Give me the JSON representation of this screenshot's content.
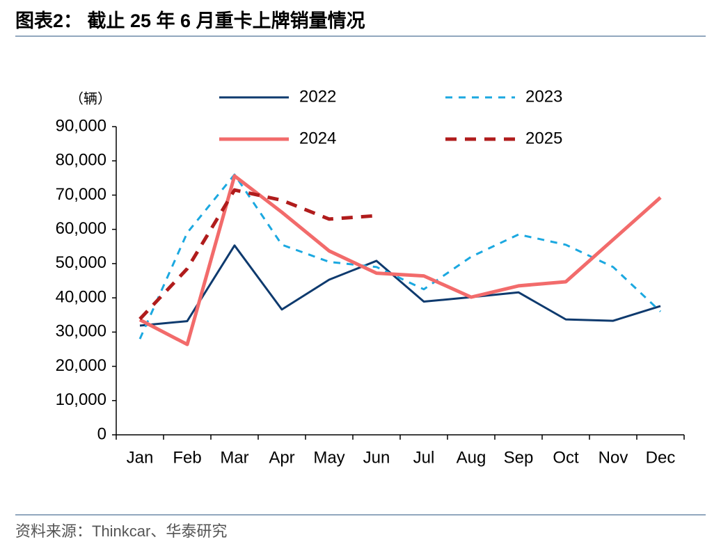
{
  "chart_data": {
    "type": "line",
    "title": "图表2：  截止 25 年 6 月重卡上牌销量情况",
    "y_unit": "（辆）",
    "source": "资料来源：Thinkcar、华泰研究",
    "categories": [
      "Jan",
      "Feb",
      "Mar",
      "Apr",
      "May",
      "Jun",
      "Jul",
      "Aug",
      "Sep",
      "Oct",
      "Nov",
      "Dec"
    ],
    "series": [
      {
        "name": "2022",
        "color": "#0e3a6e",
        "line_style": "solid",
        "values": [
          31900,
          33200,
          55300,
          36600,
          45300,
          50800,
          38900,
          40200,
          41600,
          33700,
          33300,
          37600
        ]
      },
      {
        "name": "2023",
        "color": "#1ba8e0",
        "line_style": "dashed",
        "values": [
          28000,
          59000,
          76000,
          55500,
          50500,
          49000,
          42500,
          52000,
          58500,
          55500,
          49000,
          36000
        ]
      },
      {
        "name": "2024",
        "color": "#f26b6b",
        "line_style": "solid",
        "values": [
          33600,
          26400,
          75600,
          65000,
          53700,
          47200,
          46400,
          40200,
          43500,
          44700,
          57000,
          69300
        ]
      },
      {
        "name": "2025",
        "color": "#b01c1c",
        "line_style": "dashed",
        "values": [
          33800,
          48500,
          71500,
          68500,
          63000,
          64000,
          null,
          null,
          null,
          null,
          null,
          null
        ]
      }
    ],
    "ylim": [
      0,
      90000
    ],
    "yticks": [
      0,
      {
        "value": 10000,
        "label": "10,000"
      },
      {
        "value": 20000,
        "label": "20,000"
      },
      {
        "value": 30000,
        "label": "30,000"
      },
      {
        "value": 40000,
        "label": "40,000"
      },
      {
        "value": 50000,
        "label": "50,000"
      },
      {
        "value": 60000,
        "label": "60,000"
      },
      {
        "value": 70000,
        "label": "70,000"
      },
      {
        "value": 80000,
        "label": "80,000"
      },
      {
        "value": 90000,
        "label": "90,000"
      }
    ],
    "grid": false,
    "legend": "top"
  }
}
